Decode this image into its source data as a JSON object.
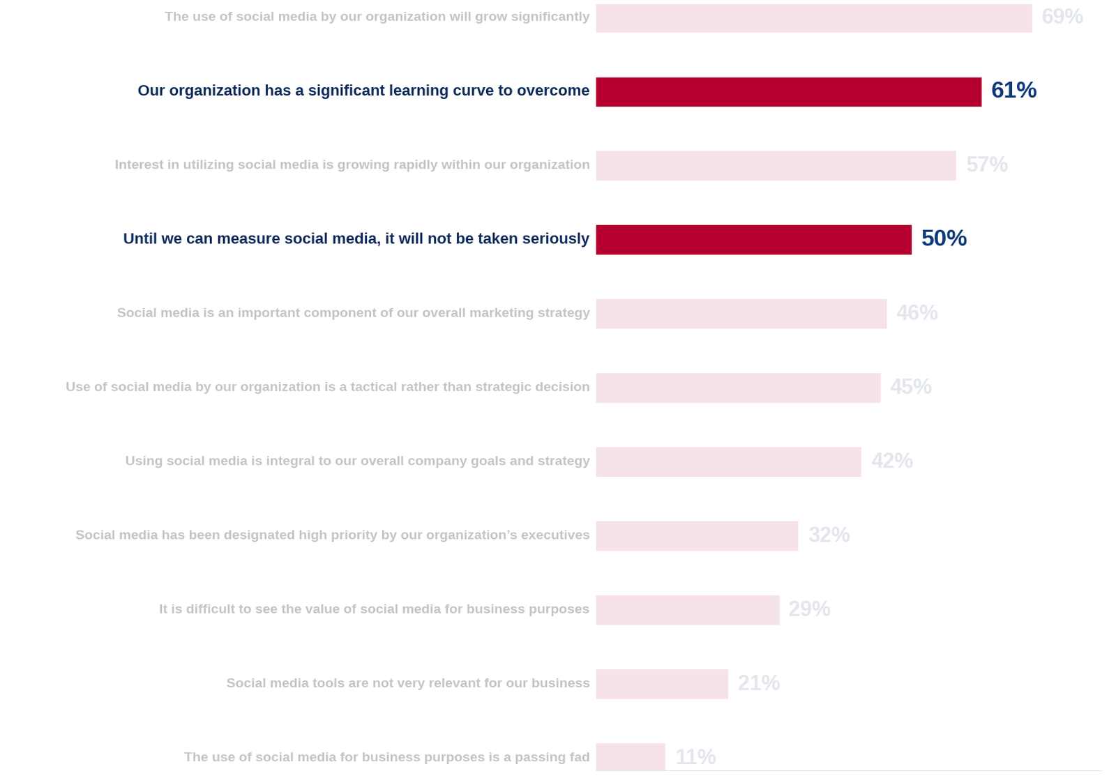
{
  "chart_data": {
    "type": "bar",
    "orientation": "horizontal",
    "categories": [
      "The use of social media by our organization will grow significantly",
      "Our organization has a significant learning curve to overcome",
      "Interest in utilizing social media is growing rapidly within our organization",
      "Until we can measure social media, it will not be taken seriously",
      "Social media is an important component of our overall marketing strategy",
      "Use of social media by our organization is a tactical rather than strategic decision",
      "Using social media is integral to our overall company goals and strategy",
      "Social media has been designated high priority by our organization’s executives",
      "It is difficult to see the value of social media for business purposes",
      "Social media tools are not very relevant for our business",
      "The use of social media for business purposes is a passing fad"
    ],
    "values": [
      69,
      61,
      57,
      50,
      46,
      45,
      42,
      32,
      29,
      21,
      11
    ],
    "value_labels": [
      "69%",
      "61%",
      "57%",
      "50%",
      "46%",
      "45%",
      "42%",
      "32%",
      "29%",
      "21%",
      "11%"
    ],
    "data_labels": true,
    "colors": [
      "#f6e3e8",
      "#b5002f",
      "#f6e3e8",
      "#b5002f",
      "#f6e3e8",
      "#f6e3e8",
      "#f6e3e8",
      "#f6e3e8",
      "#f6e3e8",
      "#f6e3e8",
      "#f6e3e8"
    ],
    "xlim": [
      0,
      80
    ],
    "xticks": [],
    "tick_labels": false,
    "grid": false
  }
}
